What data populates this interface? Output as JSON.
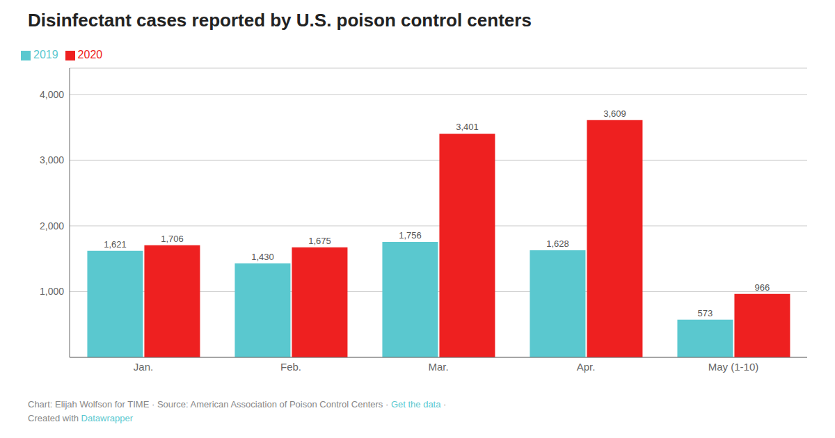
{
  "chart_data": {
    "type": "bar",
    "title": "Disinfectant cases reported by U.S. poison control centers",
    "categories": [
      "Jan.",
      "Feb.",
      "Mar.",
      "Apr.",
      "May (1-10)"
    ],
    "series": [
      {
        "name": "2019",
        "color": "#5ac8cf",
        "values": [
          1621,
          1430,
          1756,
          1628,
          573
        ],
        "value_labels": [
          "1,621",
          "1,430",
          "1,756",
          "1,628",
          "573"
        ]
      },
      {
        "name": "2020",
        "color": "#ee2020",
        "values": [
          1706,
          1675,
          3401,
          3609,
          966
        ],
        "value_labels": [
          "1,706",
          "1,675",
          "3,401",
          "3,609",
          "966"
        ]
      }
    ],
    "ylim": [
      0,
      4400
    ],
    "yticks": [
      {
        "value": 1000,
        "label": "1,000"
      },
      {
        "value": 2000,
        "label": "2,000"
      },
      {
        "value": 3000,
        "label": "3,000"
      },
      {
        "value": 4000,
        "label": "4,000"
      }
    ],
    "grid": true,
    "legend": "upper left",
    "data_labels": true,
    "annotations": [
      [
        {
          "text": "Chart: Elijah Wolfson for TIME · Source: American Association of Poison Control Centers · ",
          "color": "#888888"
        },
        {
          "text": "Get the data",
          "color": "#5ac8cf"
        },
        {
          "text": " ·",
          "color": "#888888"
        }
      ],
      [
        {
          "text": "Created with ",
          "color": "#888888"
        },
        {
          "text": "Datawrapper",
          "color": "#5ac8cf"
        }
      ]
    ]
  }
}
